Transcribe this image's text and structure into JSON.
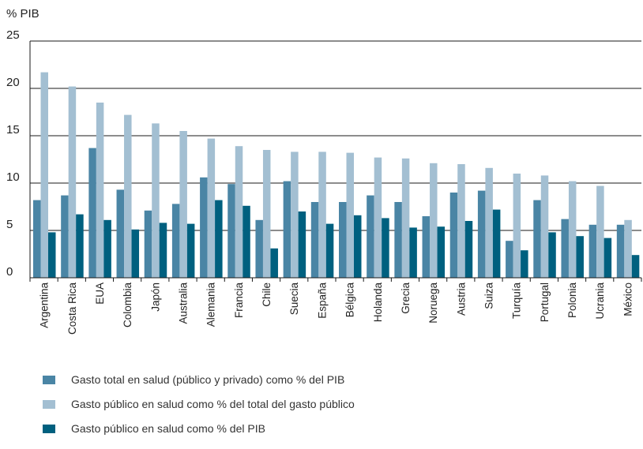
{
  "chart_data": {
    "type": "bar",
    "title": "",
    "ylabel": "% PIB",
    "xlabel": "",
    "ylim": [
      0,
      25
    ],
    "yticks": [
      0,
      5,
      10,
      15,
      20,
      25
    ],
    "grid": true,
    "legend_position": "bottom",
    "categories": [
      "Argentina",
      "Costa Rica",
      "EUA",
      "Colombia",
      "Japón",
      "Australia",
      "Alemania",
      "Francia",
      "Chile",
      "Suecia",
      "España",
      "Bélgica",
      "Holanda",
      "Grecia",
      "Noruega",
      "Austria",
      "Suiza",
      "Turquía",
      "Portugal",
      "Polonia",
      "Ucrania",
      "México"
    ],
    "series": [
      {
        "name": "Gasto total en salud (público y privado) como % del PIB",
        "color": "#4a85a5",
        "values": [
          8.2,
          8.7,
          13.7,
          9.3,
          7.1,
          7.8,
          10.6,
          9.9,
          6.1,
          10.2,
          8.0,
          8.0,
          8.7,
          8.0,
          6.5,
          9.0,
          9.2,
          3.9,
          8.2,
          6.2,
          5.6,
          5.6
        ]
      },
      {
        "name": "Gasto público en salud como % del total del gasto público",
        "color": "#a3bfd2",
        "values": [
          21.7,
          20.2,
          18.5,
          17.2,
          16.3,
          15.5,
          14.7,
          13.9,
          13.5,
          13.3,
          13.3,
          13.2,
          12.7,
          12.6,
          12.1,
          12.0,
          11.6,
          11.0,
          10.8,
          10.2,
          9.7,
          6.1
        ]
      },
      {
        "name": "Gasto público en salud como % del PIB",
        "color": "#00607f",
        "values": [
          4.8,
          6.7,
          6.1,
          5.1,
          5.8,
          5.7,
          8.2,
          7.6,
          3.1,
          7.0,
          5.7,
          6.6,
          6.3,
          5.3,
          5.4,
          6.0,
          7.2,
          2.9,
          4.8,
          4.4,
          4.2,
          2.4
        ]
      }
    ]
  }
}
